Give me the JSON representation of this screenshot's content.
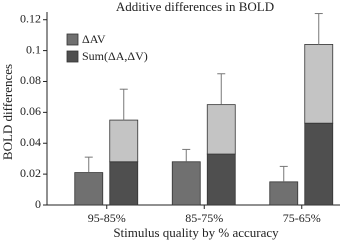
{
  "chart_data": {
    "type": "bar",
    "title": "Additive differences in BOLD",
    "x_label": "Stimulus quality by % accuracy",
    "y_label": "BOLD differences",
    "categories": [
      "95-85%",
      "85-75%",
      "75-65%"
    ],
    "series": [
      {
        "name": "ΔAV",
        "color": "#707070",
        "values": [
          0.021,
          0.028,
          0.015
        ],
        "errors": [
          0.01,
          0.008,
          0.01
        ]
      },
      {
        "segments": [
          {
            "name": "Sum(ΔA,ΔV)",
            "color": "#4f4f4f",
            "values": [
              0.028,
              0.033,
              0.053
            ]
          },
          {
            "color": "#c4c4c4",
            "values": [
              0.027,
              0.032,
              0.051
            ],
            "errors": [
              0.02,
              0.02,
              0.02
            ]
          }
        ]
      }
    ],
    "ylim": [
      0,
      0.125
    ],
    "yticks": [
      0,
      0.02,
      0.04,
      0.06,
      0.08,
      0.1,
      0.12
    ],
    "legend": "upper-left"
  }
}
